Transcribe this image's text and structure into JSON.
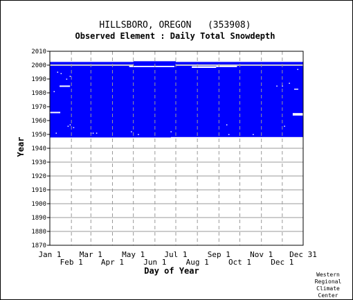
{
  "chart_data": {
    "type": "heatmap",
    "title": "HILLSBORO, OREGON   (353908)",
    "subtitle": "Observed Element : Daily Total Snowdepth",
    "xlabel": "Day of Year",
    "ylabel": "Year",
    "xlim": [
      1,
      365
    ],
    "ylim": [
      1870,
      2010
    ],
    "x_ticks_top": [
      {
        "label": "Jan 1",
        "day": 1
      },
      {
        "label": "Mar 1",
        "day": 60
      },
      {
        "label": "May 1",
        "day": 121
      },
      {
        "label": "Jul 1",
        "day": 182
      },
      {
        "label": "Sep 1",
        "day": 244
      },
      {
        "label": "Nov 1",
        "day": 305
      },
      {
        "label": "Dec 31",
        "day": 365
      }
    ],
    "x_ticks_bottom": [
      {
        "label": "Feb 1",
        "day": 32
      },
      {
        "label": "Apr 1",
        "day": 91
      },
      {
        "label": "Jun 1",
        "day": 152
      },
      {
        "label": "Aug 1",
        "day": 213
      },
      {
        "label": "Oct 1",
        "day": 274
      },
      {
        "label": "Dec 1",
        "day": 335
      }
    ],
    "y_ticks": [
      1870,
      1880,
      1890,
      1900,
      1910,
      1920,
      1930,
      1940,
      1950,
      1960,
      1970,
      1980,
      1990,
      2000,
      2010
    ],
    "grid": true,
    "colors": {
      "data": "#0000ff",
      "gap": "#ffffff",
      "grid": "#999999",
      "axis": "#000000"
    },
    "coverage": [
      {
        "day_start": 1,
        "day_end": 365,
        "year_start": 1947.8,
        "year_end": 1999.5
      },
      {
        "day_start": 1,
        "day_end": 365,
        "year_start": 2000.5,
        "year_end": 2002.3
      },
      {
        "day_start": 121,
        "day_end": 182,
        "year_start": 1999.5,
        "year_end": 2002.8
      }
    ],
    "gaps": [
      {
        "day_start": 1,
        "day_end": 16,
        "year_start": 1965.3,
        "year_end": 1966.3
      },
      {
        "day_start": 15,
        "day_end": 30,
        "year_start": 1984.3,
        "year_end": 1985.3
      },
      {
        "day_start": 350,
        "day_end": 365,
        "year_start": 1963.6,
        "year_end": 1965.4
      },
      {
        "day_start": 115,
        "day_end": 180,
        "year_start": 1998.6,
        "year_end": 1999.5
      },
      {
        "day_start": 205,
        "day_end": 240,
        "year_start": 1998.0,
        "year_end": 1999.2
      },
      {
        "day_start": 240,
        "day_end": 270,
        "year_start": 1998.6,
        "year_end": 1999.5
      },
      {
        "day_start": 352,
        "day_end": 358,
        "year_start": 1982.3,
        "year_end": 1983.0
      },
      {
        "day_start": 175,
        "day_end": 365,
        "year_start": 1947.8,
        "year_end": 1948.1
      }
    ],
    "specks": [
      {
        "day": 12,
        "year": 1995
      },
      {
        "day": 17,
        "year": 1994
      },
      {
        "day": 25,
        "year": 1990
      },
      {
        "day": 30,
        "year": 1992
      },
      {
        "day": 7,
        "year": 1981
      },
      {
        "day": 27,
        "year": 1956
      },
      {
        "day": 30,
        "year": 1957
      },
      {
        "day": 10,
        "year": 1951
      },
      {
        "day": 35,
        "year": 1955
      },
      {
        "day": 60,
        "year": 1951
      },
      {
        "day": 63,
        "year": 1951
      },
      {
        "day": 68,
        "year": 1951
      },
      {
        "day": 118,
        "year": 1952
      },
      {
        "day": 128,
        "year": 1950
      },
      {
        "day": 255,
        "year": 1957
      },
      {
        "day": 258,
        "year": 1950
      },
      {
        "day": 293,
        "year": 1950
      },
      {
        "day": 338,
        "year": 1956
      },
      {
        "day": 327,
        "year": 1985
      },
      {
        "day": 335,
        "year": 1985
      },
      {
        "day": 345,
        "year": 1987
      },
      {
        "day": 357,
        "year": 1997
      },
      {
        "day": 175,
        "year": 1952
      }
    ]
  },
  "credit": [
    "Western",
    "Regional",
    "Climate",
    "Center"
  ]
}
